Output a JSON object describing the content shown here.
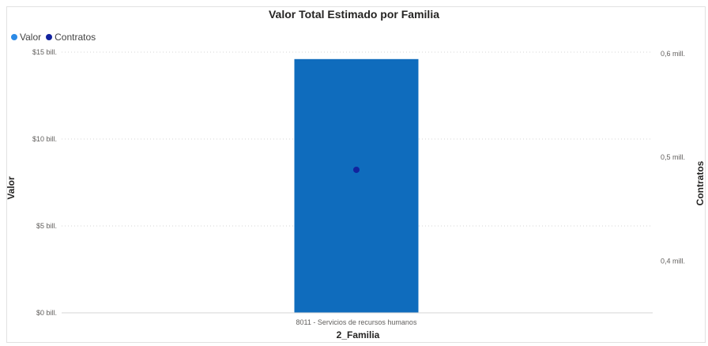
{
  "chart_data": {
    "type": "bar",
    "title": "Valor Total Estimado por Familia",
    "xlabel": "2_Familia",
    "ylabel": "Valor",
    "y2label": "Contratos",
    "categories": [
      "8011 - Servicios de recursos humanos"
    ],
    "series": [
      {
        "name": "Valor",
        "type": "bar",
        "axis": "left",
        "values": [
          14.6
        ],
        "color": "#0f6cbd"
      },
      {
        "name": "Contratos",
        "type": "point",
        "axis": "right",
        "values": [
          0.488
        ],
        "color": "#12239e"
      }
    ],
    "ylim": [
      0,
      15
    ],
    "y2lim": [
      0.35,
      0.6
    ],
    "yticks": [
      {
        "value": 0,
        "label": "$0 bill."
      },
      {
        "value": 5,
        "label": "$5 bill."
      },
      {
        "value": 10,
        "label": "$10 bill."
      },
      {
        "value": 15,
        "label": "$15 bill."
      }
    ],
    "y2ticks": [
      {
        "value": 0.4,
        "label": "0,4 mill."
      },
      {
        "value": 0.5,
        "label": "0,5 mill."
      },
      {
        "value": 0.6,
        "label": "0,6 mill."
      }
    ],
    "grid": true,
    "legend": "top-left",
    "legend_colors": {
      "Valor": "#2b8ae6",
      "Contratos": "#12239e"
    }
  }
}
